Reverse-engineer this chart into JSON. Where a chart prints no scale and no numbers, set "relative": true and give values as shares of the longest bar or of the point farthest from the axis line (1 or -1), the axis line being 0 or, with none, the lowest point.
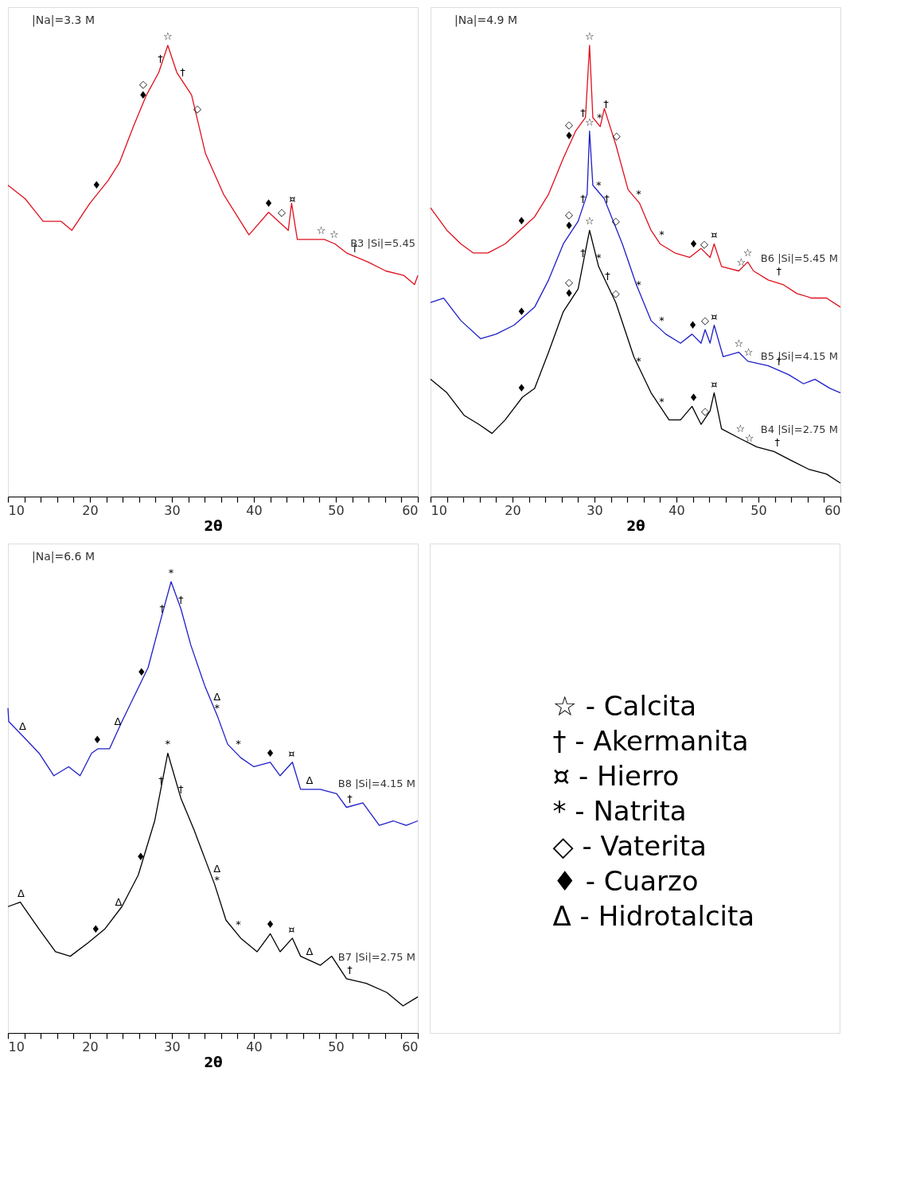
{
  "chart_data": [
    {
      "type": "line",
      "title": "|Na|=3.3 M",
      "xlabel": "2θ",
      "relative": true,
      "grid": false,
      "legend": false,
      "xlim": [
        10,
        60
      ],
      "xticks": [
        10,
        {
          "value": 12,
          "label": null
        },
        {
          "value": 14,
          "label": null
        },
        {
          "value": 16,
          "label": null
        },
        {
          "value": 18,
          "label": null
        },
        20,
        {
          "value": 22,
          "label": null
        },
        {
          "value": 24,
          "label": null
        },
        {
          "value": 26,
          "label": null
        },
        {
          "value": 28,
          "label": null
        },
        30,
        {
          "value": 32,
          "label": null
        },
        {
          "value": 34,
          "label": null
        },
        {
          "value": 36,
          "label": null
        },
        {
          "value": 38,
          "label": null
        },
        40,
        {
          "value": 42,
          "label": null
        },
        {
          "value": 44,
          "label": null
        },
        {
          "value": 46,
          "label": null
        },
        {
          "value": 48,
          "label": null
        },
        50,
        {
          "value": 52,
          "label": null
        },
        {
          "value": 54,
          "label": null
        },
        {
          "value": 56,
          "label": null
        },
        {
          "value": 58,
          "label": null
        },
        60
      ],
      "series": [
        {
          "name": "B3 |Si|=5.45",
          "color": "#e0101e",
          "x": [
            10,
            12.1,
            14.3,
            16.5,
            17.8,
            20.0,
            22.2,
            23.6,
            25.3,
            26.9,
            28.4,
            29.5,
            30.6,
            32.4,
            34.1,
            36.3,
            39.4,
            41.8,
            44.2,
            44.6,
            45.3,
            48.6,
            49.9,
            51.3,
            53.9,
            56.1,
            58.3,
            59.6,
            60
          ],
          "values": [
            0.69,
            0.66,
            0.61,
            0.61,
            0.59,
            0.65,
            0.7,
            0.74,
            0.82,
            0.89,
            0.94,
            1.0,
            0.94,
            0.89,
            0.76,
            0.67,
            0.58,
            0.63,
            0.59,
            0.65,
            0.57,
            0.57,
            0.56,
            0.54,
            0.52,
            0.5,
            0.49,
            0.47,
            0.49
          ]
        }
      ],
      "annotations": [
        {
          "text": "☆",
          "x": 29.5,
          "y": 1.0
        },
        {
          "text": "†",
          "x": 28.6,
          "y": 0.95
        },
        {
          "text": "†",
          "x": 31.3,
          "y": 0.92
        },
        {
          "text": "♦",
          "x": 26.5,
          "y": 0.87
        },
        {
          "text": "◇",
          "x": 26.5,
          "y": 0.87
        },
        {
          "text": "◇",
          "x": 33.1,
          "y": 0.84
        },
        {
          "text": "♦",
          "x": 20.8,
          "y": 0.67
        },
        {
          "text": "♦",
          "x": 41.8,
          "y": 0.63
        },
        {
          "text": "◇",
          "x": 43.4,
          "y": 0.61
        },
        {
          "text": "¤",
          "x": 44.7,
          "y": 0.64
        },
        {
          "text": "☆",
          "x": 48.2,
          "y": 0.57
        },
        {
          "text": "☆",
          "x": 49.8,
          "y": 0.56
        },
        {
          "text": "†",
          "x": 52.3,
          "y": 0.53
        }
      ]
    },
    {
      "type": "line",
      "title": "|Na|=4.9 M",
      "xlabel": "2θ",
      "relative": true,
      "grid": false,
      "legend": false,
      "xlim": [
        10,
        60
      ],
      "xticks": [
        10,
        {
          "value": 12,
          "label": null
        },
        {
          "value": 14,
          "label": null
        },
        {
          "value": 16,
          "label": null
        },
        {
          "value": 18,
          "label": null
        },
        20,
        {
          "value": 22,
          "label": null
        },
        {
          "value": 24,
          "label": null
        },
        {
          "value": 26,
          "label": null
        },
        {
          "value": 28,
          "label": null
        },
        30,
        {
          "value": 32,
          "label": null
        },
        {
          "value": 34,
          "label": null
        },
        {
          "value": 36,
          "label": null
        },
        {
          "value": 38,
          "label": null
        },
        40,
        {
          "value": 42,
          "label": null
        },
        {
          "value": 44,
          "label": null
        },
        {
          "value": 46,
          "label": null
        },
        {
          "value": 48,
          "label": null
        },
        50,
        {
          "value": 52,
          "label": null
        },
        {
          "value": 54,
          "label": null
        },
        {
          "value": 56,
          "label": null
        },
        {
          "value": 58,
          "label": null
        },
        60
      ],
      "series": [
        {
          "name": "B6 |Si|=5.45 M",
          "color": "#e0101e",
          "x": [
            10,
            12.0,
            13.7,
            15.2,
            17.0,
            19.1,
            20.9,
            22.7,
            24.4,
            26.2,
            27.7,
            28.9,
            29.4,
            29.8,
            30.7,
            31.2,
            32.6,
            34.1,
            35.5,
            36.9,
            38.0,
            39.8,
            41.6,
            43.0,
            44.1,
            44.6,
            45.5,
            47.6,
            48.7,
            49.4,
            51.2,
            53.0,
            54.7,
            56.5,
            58.3,
            60
          ],
          "values": [
            0.64,
            0.59,
            0.56,
            0.54,
            0.54,
            0.56,
            0.59,
            0.62,
            0.67,
            0.75,
            0.81,
            0.84,
            1.0,
            0.84,
            0.82,
            0.86,
            0.78,
            0.68,
            0.65,
            0.59,
            0.56,
            0.54,
            0.53,
            0.55,
            0.53,
            0.56,
            0.51,
            0.5,
            0.52,
            0.5,
            0.48,
            0.47,
            0.45,
            0.44,
            0.44,
            0.42
          ]
        },
        {
          "name": "B5 |Si|=4.15 M",
          "color": "#1f1fc8",
          "x": [
            10,
            11.6,
            13.7,
            16.1,
            18.0,
            20.2,
            22.7,
            24.4,
            26.2,
            28.0,
            29.1,
            29.4,
            29.8,
            31.2,
            33.4,
            35.1,
            36.9,
            38.7,
            40.5,
            41.9,
            43.0,
            43.5,
            44.1,
            44.6,
            45.7,
            47.6,
            48.7,
            51.2,
            53.7,
            55.5,
            56.9,
            58.7,
            60
          ],
          "values": [
            0.43,
            0.44,
            0.39,
            0.35,
            0.36,
            0.38,
            0.42,
            0.48,
            0.56,
            0.61,
            0.67,
            0.81,
            0.69,
            0.66,
            0.56,
            0.47,
            0.39,
            0.36,
            0.34,
            0.36,
            0.34,
            0.37,
            0.34,
            0.38,
            0.31,
            0.32,
            0.3,
            0.29,
            0.27,
            0.25,
            0.26,
            0.24,
            0.23
          ]
        },
        {
          "name": "B4 |Si|=2.75 M",
          "color": "#000000",
          "x": [
            10,
            12.0,
            14.1,
            15.9,
            17.5,
            19.1,
            21.2,
            22.7,
            24.4,
            26.2,
            28.0,
            29.4,
            30.5,
            32.6,
            34.8,
            36.9,
            39.1,
            40.5,
            41.9,
            43.0,
            44.1,
            44.6,
            45.5,
            47.6,
            49.8,
            51.9,
            54.0,
            56.2,
            58.3,
            60
          ],
          "values": [
            0.26,
            0.23,
            0.18,
            0.16,
            0.14,
            0.17,
            0.22,
            0.24,
            0.32,
            0.41,
            0.46,
            0.59,
            0.51,
            0.43,
            0.31,
            0.23,
            0.17,
            0.17,
            0.2,
            0.16,
            0.19,
            0.23,
            0.15,
            0.13,
            0.11,
            0.1,
            0.08,
            0.06,
            0.05,
            0.03
          ]
        }
      ],
      "annotations": [
        {
          "text": "☆",
          "x": 29.4,
          "y": 1.0
        },
        {
          "text": "♦",
          "x": 26.9,
          "y": 0.78
        },
        {
          "text": "◇",
          "x": 26.9,
          "y": 0.78
        },
        {
          "text": "†",
          "x": 28.6,
          "y": 0.83
        },
        {
          "text": "*",
          "x": 30.6,
          "y": 0.82
        },
        {
          "text": "†",
          "x": 31.4,
          "y": 0.85
        },
        {
          "text": "☆",
          "x": 29.4,
          "y": 0.81
        },
        {
          "text": "◇",
          "x": 32.7,
          "y": 0.78
        },
        {
          "text": "♦",
          "x": 21.1,
          "y": 0.59
        },
        {
          "text": "*",
          "x": 35.4,
          "y": 0.65
        },
        {
          "text": "*",
          "x": 38.2,
          "y": 0.56
        },
        {
          "text": "♦",
          "x": 42.1,
          "y": 0.54
        },
        {
          "text": "◇",
          "x": 43.4,
          "y": 0.54
        },
        {
          "text": "¤",
          "x": 44.6,
          "y": 0.56
        },
        {
          "text": "☆",
          "x": 47.9,
          "y": 0.5
        },
        {
          "text": "☆",
          "x": 48.7,
          "y": 0.52
        },
        {
          "text": "†",
          "x": 52.5,
          "y": 0.48
        },
        {
          "text": "†",
          "x": 28.6,
          "y": 0.64
        },
        {
          "text": "*",
          "x": 30.5,
          "y": 0.67
        },
        {
          "text": "†",
          "x": 31.5,
          "y": 0.64
        },
        {
          "text": "◇",
          "x": 32.6,
          "y": 0.59
        },
        {
          "text": "♦",
          "x": 26.9,
          "y": 0.58
        },
        {
          "text": "◇",
          "x": 26.9,
          "y": 0.58
        },
        {
          "text": "☆",
          "x": 29.4,
          "y": 0.59
        },
        {
          "text": "♦",
          "x": 21.1,
          "y": 0.39
        },
        {
          "text": "*",
          "x": 35.4,
          "y": 0.45
        },
        {
          "text": "*",
          "x": 38.2,
          "y": 0.37
        },
        {
          "text": "♦",
          "x": 42.0,
          "y": 0.36
        },
        {
          "text": "◇",
          "x": 43.5,
          "y": 0.37
        },
        {
          "text": "¤",
          "x": 44.6,
          "y": 0.38
        },
        {
          "text": "☆",
          "x": 47.6,
          "y": 0.32
        },
        {
          "text": "☆",
          "x": 48.8,
          "y": 0.3
        },
        {
          "text": "†",
          "x": 52.5,
          "y": 0.28
        },
        {
          "text": "†",
          "x": 28.6,
          "y": 0.52
        },
        {
          "text": "*",
          "x": 30.5,
          "y": 0.51
        },
        {
          "text": "†",
          "x": 31.6,
          "y": 0.47
        },
        {
          "text": "♦",
          "x": 26.9,
          "y": 0.43
        },
        {
          "text": "◇",
          "x": 26.9,
          "y": 0.43
        },
        {
          "text": "◇",
          "x": 32.6,
          "y": 0.43
        },
        {
          "text": "*",
          "x": 35.4,
          "y": 0.28
        },
        {
          "text": "*",
          "x": 38.2,
          "y": 0.19
        },
        {
          "text": "♦",
          "x": 21.1,
          "y": 0.22
        },
        {
          "text": "♦",
          "x": 42.1,
          "y": 0.2
        },
        {
          "text": "◇",
          "x": 43.5,
          "y": 0.17
        },
        {
          "text": "¤",
          "x": 44.6,
          "y": 0.23
        },
        {
          "text": "☆",
          "x": 47.8,
          "y": 0.13
        },
        {
          "text": "☆",
          "x": 48.9,
          "y": 0.11
        },
        {
          "text": "†",
          "x": 52.3,
          "y": 0.1
        }
      ]
    },
    {
      "type": "line",
      "title": "|Na|=6.6 M",
      "xlabel": "2θ",
      "relative": true,
      "grid": false,
      "legend": false,
      "xlim": [
        10,
        60
      ],
      "xticks": [
        10,
        {
          "value": 12,
          "label": null
        },
        {
          "value": 14,
          "label": null
        },
        {
          "value": 16,
          "label": null
        },
        {
          "value": 18,
          "label": null
        },
        20,
        {
          "value": 22,
          "label": null
        },
        {
          "value": 24,
          "label": null
        },
        {
          "value": 26,
          "label": null
        },
        {
          "value": 28,
          "label": null
        },
        30,
        {
          "value": 32,
          "label": null
        },
        {
          "value": 34,
          "label": null
        },
        {
          "value": 36,
          "label": null
        },
        {
          "value": 38,
          "label": null
        },
        40,
        {
          "value": 42,
          "label": null
        },
        {
          "value": 44,
          "label": null
        },
        {
          "value": 46,
          "label": null
        },
        {
          "value": 48,
          "label": null
        },
        50,
        {
          "value": 52,
          "label": null
        },
        {
          "value": 54,
          "label": null
        },
        {
          "value": 56,
          "label": null
        },
        {
          "value": 58,
          "label": null
        },
        60
      ],
      "series": [
        {
          "name": "B8 |Si|=4.15 M",
          "color": "#1f1fc8",
          "x": [
            10,
            10.1,
            11.7,
            13.8,
            15.6,
            17.4,
            18.8,
            20.2,
            21.0,
            22.4,
            23.9,
            25.5,
            27.1,
            28.7,
            29.9,
            31.1,
            32.3,
            34.0,
            35.6,
            36.8,
            38.4,
            40.0,
            42.0,
            43.2,
            44.7,
            45.7,
            48.1,
            50.1,
            51.3,
            53.3,
            55.3,
            57.0,
            58.6,
            60
          ],
          "values": [
            0.72,
            0.69,
            0.66,
            0.62,
            0.57,
            0.59,
            0.57,
            0.62,
            0.63,
            0.63,
            0.69,
            0.75,
            0.81,
            0.92,
            1.0,
            0.94,
            0.86,
            0.77,
            0.7,
            0.64,
            0.61,
            0.59,
            0.6,
            0.57,
            0.6,
            0.54,
            0.54,
            0.53,
            0.5,
            0.51,
            0.46,
            0.47,
            0.46,
            0.47
          ]
        },
        {
          "name": "B7 |Si|=2.75 M",
          "color": "#000000",
          "x": [
            10,
            11.5,
            13.8,
            15.8,
            17.6,
            19.8,
            21.8,
            23.9,
            25.9,
            27.9,
            29.5,
            31.1,
            32.7,
            35.2,
            36.6,
            38.4,
            40.4,
            42.0,
            43.2,
            44.7,
            45.7,
            48.1,
            49.5,
            51.3,
            53.7,
            56.2,
            58.2,
            60
          ],
          "values": [
            0.28,
            0.29,
            0.23,
            0.18,
            0.17,
            0.2,
            0.23,
            0.28,
            0.35,
            0.47,
            0.62,
            0.52,
            0.45,
            0.33,
            0.25,
            0.21,
            0.18,
            0.22,
            0.18,
            0.21,
            0.17,
            0.15,
            0.17,
            0.12,
            0.11,
            0.09,
            0.06,
            0.08
          ]
        }
      ],
      "annotations": [
        {
          "text": "*",
          "x": 29.9,
          "y": 1.0
        },
        {
          "text": "†",
          "x": 28.8,
          "y": 0.92
        },
        {
          "text": "†",
          "x": 31.1,
          "y": 0.94
        },
        {
          "text": "♦",
          "x": 26.3,
          "y": 0.78
        },
        {
          "text": "*",
          "x": 35.5,
          "y": 0.7
        },
        {
          "text": "Δ",
          "x": 35.5,
          "y": 0.7
        },
        {
          "text": "Δ",
          "x": 11.8,
          "y": 0.66
        },
        {
          "text": "Δ",
          "x": 23.4,
          "y": 0.67
        },
        {
          "text": "♦",
          "x": 20.9,
          "y": 0.63
        },
        {
          "text": "*",
          "x": 38.1,
          "y": 0.62
        },
        {
          "text": "♦",
          "x": 42.0,
          "y": 0.6
        },
        {
          "text": "¤",
          "x": 44.6,
          "y": 0.6
        },
        {
          "text": "Δ",
          "x": 46.8,
          "y": 0.54
        },
        {
          "text": "†",
          "x": 51.7,
          "y": 0.5
        },
        {
          "text": "*",
          "x": 29.5,
          "y": 0.62
        },
        {
          "text": "†",
          "x": 28.7,
          "y": 0.54
        },
        {
          "text": "†",
          "x": 31.1,
          "y": 0.52
        },
        {
          "text": "♦",
          "x": 26.2,
          "y": 0.37
        },
        {
          "text": "*",
          "x": 35.5,
          "y": 0.32
        },
        {
          "text": "Δ",
          "x": 35.5,
          "y": 0.32
        },
        {
          "text": "Δ",
          "x": 11.6,
          "y": 0.29
        },
        {
          "text": "Δ",
          "x": 23.5,
          "y": 0.27
        },
        {
          "text": "♦",
          "x": 20.7,
          "y": 0.21
        },
        {
          "text": "*",
          "x": 38.1,
          "y": 0.22
        },
        {
          "text": "♦",
          "x": 42.0,
          "y": 0.22
        },
        {
          "text": "¤",
          "x": 44.6,
          "y": 0.21
        },
        {
          "text": "Δ",
          "x": 46.8,
          "y": 0.16
        },
        {
          "text": "†",
          "x": 51.7,
          "y": 0.12
        }
      ]
    },
    {
      "type": "other",
      "annotations": [
        "☆ - Calcita",
        "† - Akermanita",
        "¤ - Hierro",
        "* - Natrita",
        "◇ - Vaterita",
        "♦ - Cuarzo",
        "Δ - Hidrotalcita"
      ]
    }
  ]
}
